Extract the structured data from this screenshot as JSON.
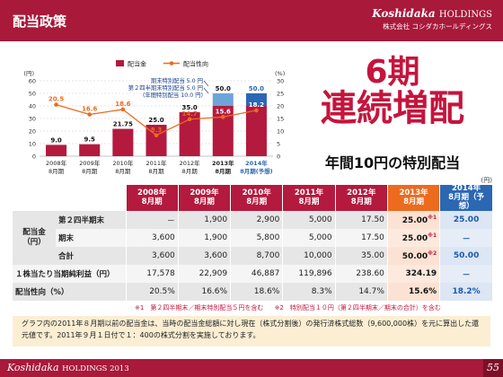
{
  "header": {
    "title": "配当政策",
    "brand": "Koshidaka",
    "brand_suffix": "HOLDINGS",
    "company": "株式会社 コシダカホールディングス"
  },
  "colors": {
    "dividend": "#b31a3e",
    "payout": "#ec6b1e",
    "special": "#6fa4d8",
    "special_2014": "#2b67b3"
  },
  "chart_data": {
    "type": "bar",
    "categories": [
      "2008年\n8月期",
      "2009年\n8月期",
      "2010年\n8月期",
      "2011年\n8月期",
      "2012年\n8月期",
      "2013年\n8月期",
      "2014年\n8月期(予想)"
    ],
    "series": [
      {
        "name": "配当金",
        "kind": "bar",
        "axis": "left",
        "values": [
          9.0,
          9.5,
          21.75,
          25.0,
          35.0,
          40.0,
          40.0
        ]
      },
      {
        "name": "特別配当",
        "kind": "bar-stack",
        "axis": "left",
        "values": [
          0,
          0,
          0,
          0,
          0,
          10.0,
          10.0
        ]
      },
      {
        "name": "配当性向",
        "kind": "line",
        "axis": "right",
        "values": [
          20.5,
          16.6,
          18.6,
          8.3,
          14.7,
          15.6,
          18.2
        ]
      }
    ],
    "bar_labels": [
      "9.0",
      "9.5",
      "21.75",
      "25.0",
      "35.0",
      "50.0",
      "50.0"
    ],
    "line_labels": [
      "20.5",
      "16.6",
      "18.6",
      "8.3",
      "14.7",
      "15.6",
      "18.2"
    ],
    "ylabel_left": "(円)",
    "ylabel_right": "(%)",
    "ylim_left": [
      0,
      60
    ],
    "ylim_right": [
      0,
      30
    ],
    "yticks_left": [
      "0",
      "10",
      "20",
      "30",
      "40",
      "50",
      "60"
    ],
    "yticks_right": [
      "0",
      "5",
      "10",
      "15",
      "20",
      "25",
      "30"
    ],
    "legend": [
      "配当金",
      "配当性向"
    ],
    "legend_position": "top",
    "annotations": [
      "期末特別配当 5.0 円",
      "第２四半期末特別配当 5.0 円",
      "(年間特別配当 10.0 円)"
    ]
  },
  "headline": {
    "line1": "6期",
    "line2": "連続増配",
    "subtitle": "年間10円の特別配当",
    "unit": "(円)"
  },
  "table": {
    "years": [
      "2008年\n8月期",
      "2009年\n8月期",
      "2010年\n8月期",
      "2011年\n8月期",
      "2012年\n8月期",
      "2013年\n8月期",
      "2014年\n8月期（予想）"
    ],
    "dividend_group_label": "配当金\n（円）",
    "rows": [
      {
        "label": "第２四半期末",
        "values": [
          "－",
          "1,900",
          "2,900",
          "5,000",
          "17.50",
          "25.00",
          "25.00"
        ],
        "note13": "※1"
      },
      {
        "label": "期末",
        "values": [
          "3,600",
          "1,900",
          "5,800",
          "5,000",
          "17.50",
          "25.00",
          "－"
        ],
        "note13": "※1"
      },
      {
        "label": "合計",
        "values": [
          "3,600",
          "3,600",
          "8,700",
          "10,000",
          "35.00",
          "50.00",
          "50.00"
        ],
        "note13": "※2"
      },
      {
        "label": "１株当たり当期純利益（円）",
        "values": [
          "17,578",
          "22,909",
          "46,887",
          "119,896",
          "238.60",
          "324.19",
          "－"
        ],
        "note13": ""
      },
      {
        "label": "配当性向（%）",
        "values": [
          "20.5%",
          "16.6%",
          "18.6%",
          "8.3%",
          "14.7%",
          "15.6%",
          "18.2%"
        ],
        "note13": ""
      }
    ]
  },
  "notes": [
    "※1　第２四半期末／期末特別配当５円を含む",
    "※2　特別配当１０円（第２四半期末／期末の合計）を含む"
  ],
  "footnote": "グラフ内の2011年８月期以前の配当金は、当時の配当金総額に対し現在（株式分割後）の発行済株式総数（9,600,000株）を元に算出した還元値です。2011年９月１日付で１：400の株式分割を実施しております。",
  "footer": {
    "brand": "Koshidaka",
    "suffix": "HOLDINGS 2013",
    "page": "55"
  }
}
